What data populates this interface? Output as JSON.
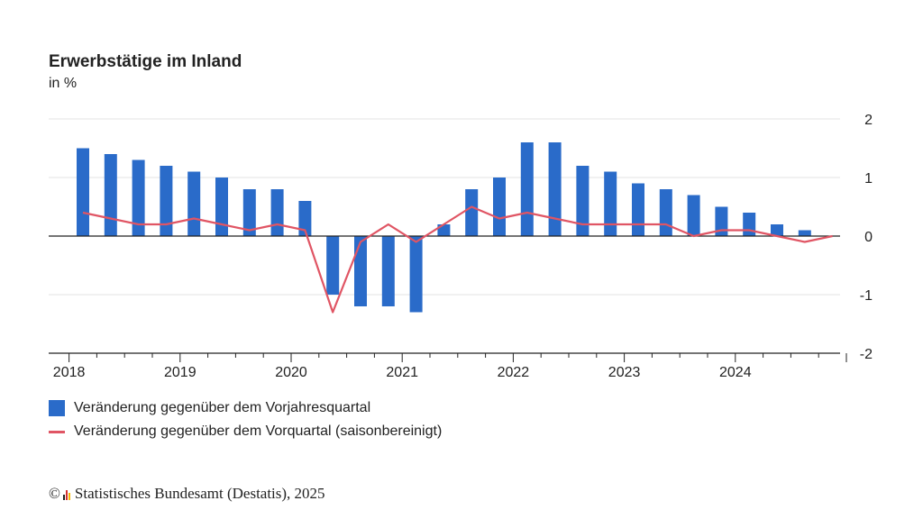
{
  "colors": {
    "bar": "#2a6bc9",
    "line": "#e05564",
    "grid": "#e3e3e3",
    "axis": "#222222"
  },
  "chart_data": {
    "type": "bar",
    "title": "Erwerbstätige im Inland",
    "subtitle": "in %",
    "ylim": [
      -2,
      2
    ],
    "yticks": [
      2,
      1,
      0,
      -1,
      -2
    ],
    "x_labels": [
      "2018",
      "2019",
      "2020",
      "2021",
      "2022",
      "2023",
      "2024"
    ],
    "grid": true,
    "legend_position": "bottom-left",
    "categories": [
      "2018 Q1",
      "2018 Q2",
      "2018 Q3",
      "2018 Q4",
      "2019 Q1",
      "2019 Q2",
      "2019 Q3",
      "2019 Q4",
      "2020 Q1",
      "2020 Q2",
      "2020 Q3",
      "2020 Q4",
      "2021 Q1",
      "2021 Q2",
      "2021 Q3",
      "2021 Q4",
      "2022 Q1",
      "2022 Q2",
      "2022 Q3",
      "2022 Q4",
      "2023 Q1",
      "2023 Q2",
      "2023 Q3",
      "2023 Q4",
      "2024 Q1",
      "2024 Q2",
      "2024 Q3",
      "2024 Q4"
    ],
    "series": [
      {
        "name": "Veränderung gegenüber dem Vorjahresquartal",
        "type": "bar",
        "values": [
          1.5,
          1.4,
          1.3,
          1.2,
          1.1,
          1.0,
          0.8,
          0.8,
          0.6,
          -1.0,
          -1.2,
          -1.2,
          -1.3,
          0.2,
          0.8,
          1.0,
          1.6,
          1.6,
          1.2,
          1.1,
          0.9,
          0.8,
          0.7,
          0.5,
          0.4,
          0.2,
          0.1,
          0.0
        ]
      },
      {
        "name": "Veränderung gegenüber dem Vorquartal (saisonbereinigt)",
        "type": "line",
        "values": [
          0.4,
          0.3,
          0.2,
          0.2,
          0.3,
          0.2,
          0.1,
          0.2,
          0.1,
          -1.3,
          -0.1,
          0.2,
          -0.1,
          0.2,
          0.5,
          0.3,
          0.4,
          0.3,
          0.2,
          0.2,
          0.2,
          0.2,
          0.0,
          0.1,
          0.1,
          0.0,
          -0.1,
          0.0
        ]
      }
    ]
  },
  "source": {
    "copyright": "©",
    "text": "Statistisches Bundesamt (Destatis), 2025"
  }
}
